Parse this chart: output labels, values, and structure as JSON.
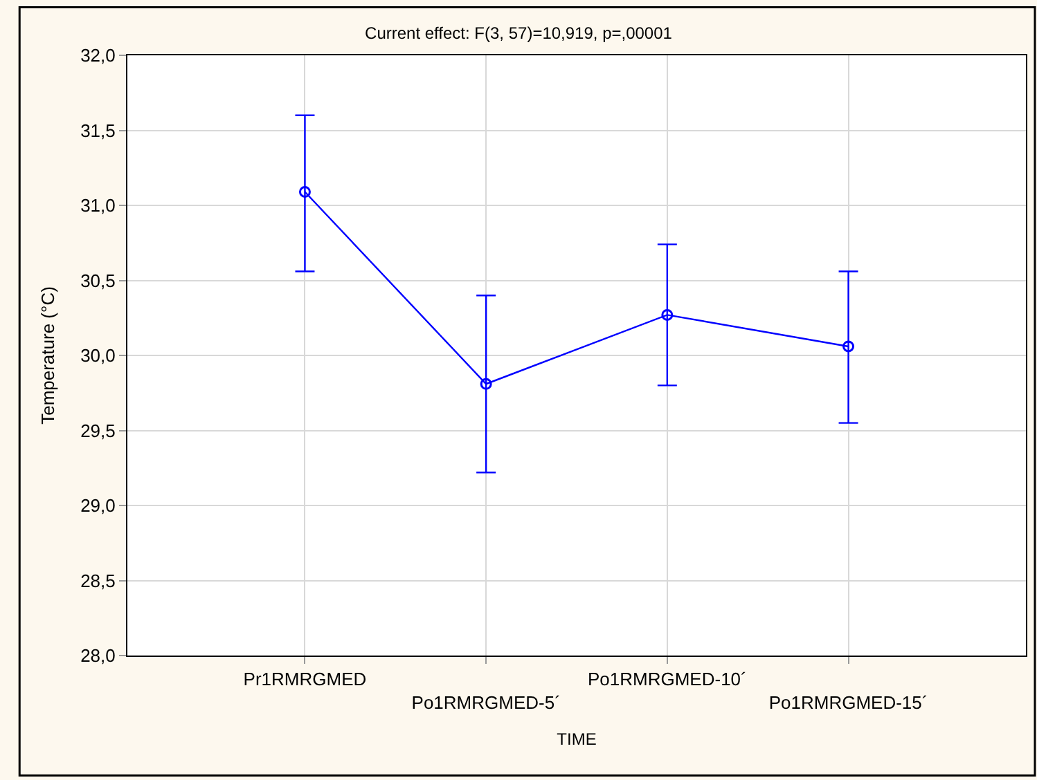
{
  "chart_data": {
    "type": "line",
    "title": "Current effect: F(3, 57)=10,919, p=,00001",
    "xlabel": "TIME",
    "ylabel": "Temperature (°C)",
    "categories": [
      "Pr1RMRGMED",
      "Po1RMRGMED-5´",
      "Po1RMRGMED-10´",
      "Po1RMRGMED-15´"
    ],
    "series": [
      {
        "color": "#0000ff",
        "values": [
          31.09,
          29.81,
          30.27,
          30.06
        ],
        "errors": [
          [
            30.56,
            31.6
          ],
          [
            29.22,
            30.4
          ],
          [
            29.8,
            30.74
          ],
          [
            29.55,
            30.56
          ]
        ]
      }
    ],
    "ylim": [
      28,
      32
    ],
    "yticks": [
      {
        "value": 28,
        "label": "28,0"
      },
      {
        "value": 28.5,
        "label": "28,5"
      },
      {
        "value": 29,
        "label": "29,0"
      },
      {
        "value": 29.5,
        "label": "29,5"
      },
      {
        "value": 30,
        "label": "30,0"
      },
      {
        "value": 30.5,
        "label": "30,5"
      },
      {
        "value": 31,
        "label": "31,0"
      },
      {
        "value": 31.5,
        "label": "31,5"
      },
      {
        "value": 32,
        "label": "32,0"
      }
    ],
    "grid": true,
    "marker": "circle",
    "line_style": "solid"
  }
}
